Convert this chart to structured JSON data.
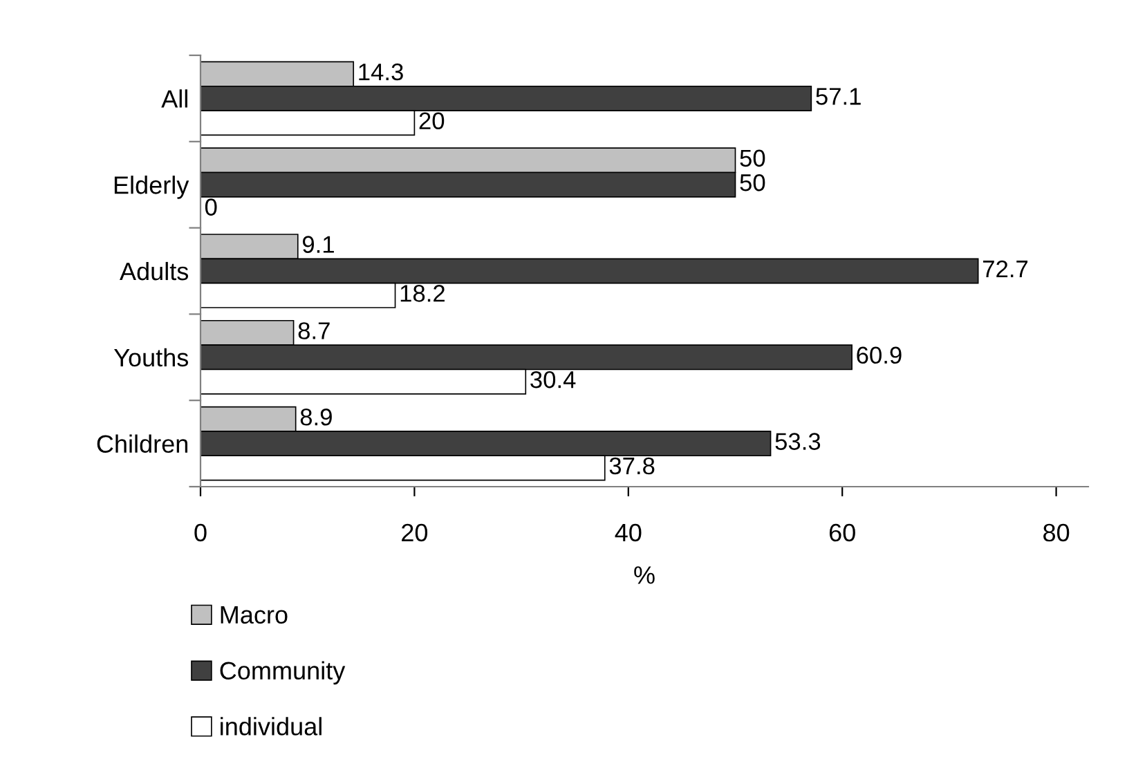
{
  "chart_data": {
    "type": "bar",
    "orientation": "horizontal",
    "xlabel": "%",
    "categories": [
      "All",
      "Elderly",
      "Adults",
      "Youths",
      "Children"
    ],
    "series": [
      {
        "name": "Macro",
        "color": "#c0c0c0",
        "values": [
          14.3,
          50,
          9.1,
          8.7,
          8.9
        ]
      },
      {
        "name": "Community",
        "color": "#404040",
        "values": [
          57.1,
          50,
          72.7,
          60.9,
          53.3
        ]
      },
      {
        "name": "individual",
        "color": "#ffffff",
        "values": [
          20,
          0,
          18.2,
          30.4,
          37.8
        ]
      }
    ],
    "xlim": [
      0,
      83
    ],
    "xticks": [
      0,
      20,
      40,
      60,
      80
    ],
    "grid": false,
    "legend": "bottom left",
    "data_labels": true
  }
}
